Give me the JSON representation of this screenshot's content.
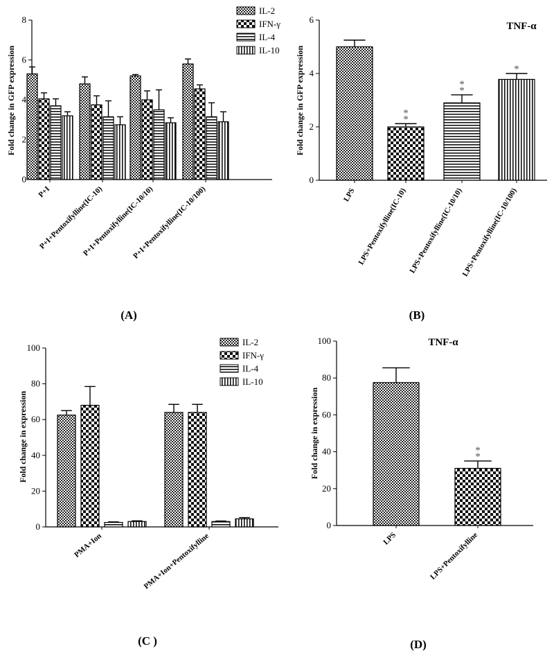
{
  "figure": {
    "panel_labels": [
      "(A)",
      "(B)",
      "(C )",
      "(D)"
    ]
  },
  "chart_data": [
    {
      "panel": "(A)",
      "type": "bar",
      "ylabel": "Fold change in GFP expression",
      "ylim": [
        0,
        8
      ],
      "yticks": [
        0,
        2,
        4,
        6,
        8
      ],
      "categories": [
        "P+I",
        "P+I+Pentoxifylline(IC-10)",
        "P+I+Pentoxifylline(IC-10/10)",
        "P+I+Pentoxifylline(IC-10/100)"
      ],
      "series": [
        {
          "name": "IL-2",
          "pattern": "checker",
          "values": [
            5.3,
            4.8,
            5.2,
            5.8
          ],
          "errors": [
            0.35,
            0.35,
            0.07,
            0.25
          ]
        },
        {
          "name": "IFN-γ",
          "pattern": "bigchecker",
          "values": [
            4.05,
            3.75,
            4.0,
            4.55
          ],
          "errors": [
            0.3,
            0.45,
            0.45,
            0.2
          ]
        },
        {
          "name": "IL-4",
          "pattern": "hstripe",
          "values": [
            3.7,
            3.15,
            3.5,
            3.15
          ],
          "errors": [
            0.35,
            0.8,
            1.0,
            0.7
          ]
        },
        {
          "name": "IL-10",
          "pattern": "vstripe",
          "values": [
            3.2,
            2.75,
            2.85,
            2.9
          ],
          "errors": [
            0.2,
            0.4,
            0.25,
            0.5
          ]
        }
      ],
      "legend_position": "top-right"
    },
    {
      "panel": "(B)",
      "type": "bar",
      "annotation": "TNF-α",
      "ylabel": "Fold change in GFP expression",
      "ylim": [
        0,
        6
      ],
      "yticks": [
        0,
        2,
        4,
        6
      ],
      "categories": [
        "LPS",
        "LPS+Pentoxifylline(IC-10)",
        "LPS+Pentoxifylline(IC-10/10)",
        "LPS+Pentoxifylline(IC-10/100)"
      ],
      "values": [
        5.0,
        2.0,
        2.9,
        3.78
      ],
      "errors": [
        0.25,
        0.12,
        0.3,
        0.22
      ],
      "patterns": [
        "checker",
        "bigchecker",
        "hstripe",
        "vstripe"
      ],
      "significance": [
        "",
        "**",
        "**",
        "*"
      ]
    },
    {
      "panel": "(C )",
      "type": "bar",
      "ylabel": "Fold change in expression",
      "ylim": [
        0,
        100
      ],
      "yticks": [
        0,
        20,
        40,
        60,
        80,
        100
      ],
      "categories": [
        "PMA+Ion",
        "PMA+Ion+Pentoxifylline"
      ],
      "series": [
        {
          "name": "IL-2",
          "pattern": "checker",
          "values": [
            62.5,
            64.0
          ],
          "errors": [
            2.5,
            4.5
          ]
        },
        {
          "name": "IFN-γ",
          "pattern": "bigchecker",
          "values": [
            68.0,
            64.0
          ],
          "errors": [
            10.5,
            4.5
          ]
        },
        {
          "name": "IL-4",
          "pattern": "hstripe",
          "values": [
            2.5,
            3.0
          ],
          "errors": [
            0.3,
            0.3
          ]
        },
        {
          "name": "IL-10",
          "pattern": "vstripe",
          "values": [
            3.0,
            4.5
          ],
          "errors": [
            0.4,
            0.7
          ]
        }
      ],
      "legend_position": "top-right"
    },
    {
      "panel": "(D)",
      "type": "bar",
      "annotation": "TNF-α",
      "ylabel": "Fold change in expression",
      "ylim": [
        0,
        100
      ],
      "yticks": [
        0,
        20,
        40,
        60,
        80,
        100
      ],
      "categories": [
        "LPS",
        "LPS+Pentoxifylline"
      ],
      "values": [
        77.5,
        31.0
      ],
      "errors": [
        8.0,
        4.0
      ],
      "patterns": [
        "checker",
        "bigchecker"
      ],
      "significance": [
        "",
        "**"
      ]
    }
  ]
}
